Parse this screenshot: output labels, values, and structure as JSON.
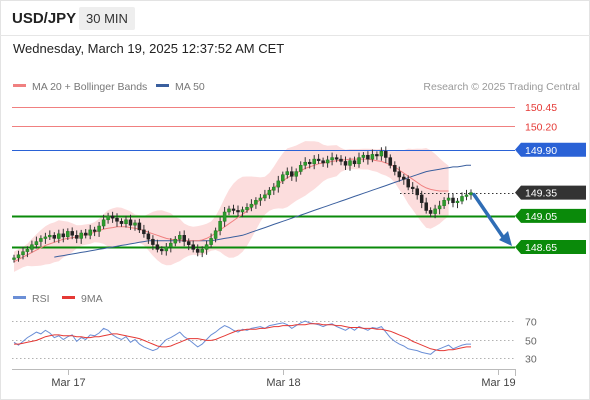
{
  "header": {
    "symbol": "USD/JPY",
    "timeframe": "30 MIN",
    "datetime": "Wednesday, March 19, 2025 12:37:52 AM CET"
  },
  "legend": {
    "ma20": "MA 20 + Bollinger Bands",
    "ma50": "MA 50",
    "ma20_color": "#f08080",
    "ma50_color": "#3a5f9e",
    "credit": "Research © 2025 Trading Central"
  },
  "chart_data": [
    {
      "type": "line",
      "panel": "price",
      "x_ticks": [
        {
          "label": "Mar 17",
          "index": 12
        },
        {
          "label": "Mar 18",
          "index": 60
        },
        {
          "label": "Mar 19",
          "index": 108
        }
      ],
      "ylim": [
        148.45,
        150.55
      ],
      "levels": [
        {
          "value": 150.45,
          "label": "150.45",
          "kind": "resistance",
          "color": "#f08080",
          "tag_bg": "#ffffff",
          "tag_fg": "#e53935"
        },
        {
          "value": 150.2,
          "label": "150.20",
          "kind": "resistance",
          "color": "#f08080",
          "tag_bg": "#ffffff",
          "tag_fg": "#e53935"
        },
        {
          "value": 149.9,
          "label": "149.90",
          "kind": "pivot",
          "color": "#2a62d6",
          "tag_bg": "#2a62d6",
          "tag_fg": "#ffffff"
        },
        {
          "value": 149.35,
          "label": "149.35",
          "kind": "last",
          "color": "#333333",
          "tag_bg": "#333333",
          "tag_fg": "#ffffff"
        },
        {
          "value": 149.05,
          "label": "149.05",
          "kind": "support",
          "color": "#0a8a0a",
          "tag_bg": "#0a8a0a",
          "tag_fg": "#ffffff"
        },
        {
          "value": 148.65,
          "label": "148.65",
          "kind": "support",
          "color": "#0a8a0a",
          "tag_bg": "#0a8a0a",
          "tag_fg": "#ffffff"
        }
      ],
      "close": [
        148.51,
        148.55,
        148.59,
        148.62,
        148.68,
        148.72,
        148.76,
        148.78,
        148.8,
        148.76,
        148.82,
        148.78,
        148.85,
        148.8,
        148.76,
        148.83,
        148.8,
        148.87,
        148.85,
        148.92,
        149.0,
        149.05,
        149.02,
        148.98,
        148.95,
        149.0,
        148.93,
        148.96,
        148.87,
        148.82,
        148.75,
        148.68,
        148.62,
        148.6,
        148.65,
        148.7,
        148.75,
        148.8,
        148.72,
        148.68,
        148.62,
        148.58,
        148.62,
        148.68,
        148.76,
        148.86,
        148.98,
        149.1,
        149.14,
        149.12,
        149.1,
        149.13,
        149.16,
        149.2,
        149.25,
        149.28,
        149.32,
        149.38,
        149.42,
        149.5,
        149.58,
        149.62,
        149.56,
        149.62,
        149.7,
        149.74,
        149.72,
        149.78,
        149.76,
        149.73,
        149.77,
        149.8,
        149.78,
        149.75,
        149.7,
        149.76,
        149.72,
        149.8,
        149.83,
        149.78,
        149.84,
        149.82,
        149.88,
        149.8,
        149.7,
        149.62,
        149.55,
        149.52,
        149.42,
        149.4,
        149.32,
        149.22,
        149.12,
        149.08,
        149.14,
        149.18,
        149.25,
        149.28,
        149.22,
        149.24,
        149.3,
        149.32,
        149.35
      ],
      "ma20": [
        148.46,
        148.49,
        148.52,
        148.55,
        148.58,
        148.61,
        148.64,
        148.67,
        148.69,
        148.71,
        148.73,
        148.75,
        148.76,
        148.77,
        148.78,
        148.8,
        148.81,
        148.82,
        148.84,
        148.86,
        148.88,
        148.89,
        148.9,
        148.91,
        148.91,
        148.91,
        148.9,
        148.89,
        148.88,
        148.86,
        148.84,
        148.82,
        148.8,
        148.78,
        148.76,
        148.75,
        148.74,
        148.74,
        148.73,
        148.73,
        148.73,
        148.73,
        148.74,
        148.76,
        148.79,
        148.83,
        148.87,
        148.91,
        148.95,
        148.99,
        149.03,
        149.07,
        149.11,
        149.16,
        149.21,
        149.26,
        149.31,
        149.36,
        149.41,
        149.46,
        149.5,
        149.54,
        149.57,
        149.6,
        149.63,
        149.66,
        149.68,
        149.7,
        149.72,
        149.73,
        149.74,
        149.75,
        149.76,
        149.77,
        149.77,
        149.78,
        149.78,
        149.78,
        149.78,
        149.78,
        149.77,
        149.76,
        149.75,
        149.73,
        149.71,
        149.68,
        149.64,
        149.6,
        149.56,
        149.52,
        149.48,
        149.44,
        149.41,
        149.39,
        149.38,
        149.37,
        149.37,
        149.37
      ],
      "ma50": [
        148.52,
        148.53,
        148.54,
        148.55,
        148.56,
        148.57,
        148.58,
        148.59,
        148.6,
        148.61,
        148.62,
        148.63,
        148.64,
        148.65,
        148.66,
        148.67,
        148.68,
        148.69,
        148.7,
        148.71,
        148.72,
        148.73,
        148.73,
        148.73,
        148.73,
        148.73,
        148.73,
        148.73,
        148.73,
        148.73,
        148.73,
        148.73,
        148.73,
        148.73,
        148.73,
        148.73,
        148.74,
        148.75,
        148.76,
        148.77,
        148.78,
        148.79,
        148.8,
        148.82,
        148.84,
        148.86,
        148.88,
        148.9,
        148.92,
        148.94,
        148.96,
        148.98,
        149.0,
        149.02,
        149.04,
        149.06,
        149.08,
        149.1,
        149.12,
        149.14,
        149.16,
        149.18,
        149.2,
        149.22,
        149.24,
        149.26,
        149.28,
        149.3,
        149.32,
        149.34,
        149.36,
        149.38,
        149.4,
        149.42,
        149.44,
        149.46,
        149.48,
        149.5,
        149.52,
        149.54,
        149.56,
        149.58,
        149.6,
        149.62,
        149.63,
        149.64,
        149.65,
        149.66,
        149.67,
        149.68,
        149.68,
        149.69,
        149.7,
        149.7
      ],
      "forecast": {
        "from": 149.35,
        "to": 148.65
      }
    },
    {
      "type": "line",
      "panel": "rsi",
      "legend": [
        "RSI",
        "9MA"
      ],
      "colors": {
        "rsi": "#6b8fd6",
        "ma": "#e53935"
      },
      "y_ticks": [
        70,
        50,
        30
      ],
      "ylim": [
        25,
        75
      ],
      "rsi": [
        47,
        44,
        48,
        52,
        55,
        58,
        56,
        60,
        57,
        52,
        54,
        50,
        53,
        55,
        48,
        52,
        50,
        55,
        54,
        57,
        62,
        60,
        55,
        52,
        50,
        53,
        47,
        50,
        45,
        42,
        40,
        38,
        40,
        45,
        50,
        52,
        55,
        58,
        53,
        50,
        46,
        42,
        45,
        50,
        55,
        58,
        62,
        65,
        63,
        60,
        58,
        61,
        60,
        62,
        63,
        64,
        62,
        65,
        66,
        67,
        68,
        66,
        62,
        65,
        68,
        70,
        68,
        67,
        66,
        64,
        66,
        67,
        64,
        62,
        60,
        63,
        60,
        64,
        62,
        60,
        63,
        62,
        64,
        58,
        52,
        48,
        45,
        43,
        40,
        39,
        38,
        36,
        35,
        34,
        38,
        40,
        42,
        44,
        40,
        42,
        44,
        45,
        45
      ],
      "ma9": [
        45,
        45,
        46,
        47,
        48,
        49,
        51,
        53,
        54,
        55,
        55,
        54,
        54,
        54,
        53,
        53,
        52,
        52,
        53,
        53,
        54,
        55,
        56,
        56,
        55,
        54,
        53,
        52,
        51,
        49,
        47,
        45,
        43,
        42,
        42,
        43,
        45,
        47,
        49,
        51,
        51,
        51,
        50,
        49,
        49,
        50,
        52,
        54,
        56,
        58,
        60,
        60,
        61,
        61,
        61,
        62,
        62,
        63,
        64,
        64,
        65,
        65,
        65,
        66,
        66,
        66,
        67,
        67,
        67,
        66,
        66,
        66,
        65,
        65,
        64,
        63,
        63,
        63,
        62,
        62,
        62,
        61,
        61,
        60,
        59,
        57,
        55,
        53,
        51,
        48,
        46,
        44,
        42,
        40,
        39,
        38,
        38,
        39,
        39,
        40,
        41,
        42,
        42
      ]
    }
  ]
}
